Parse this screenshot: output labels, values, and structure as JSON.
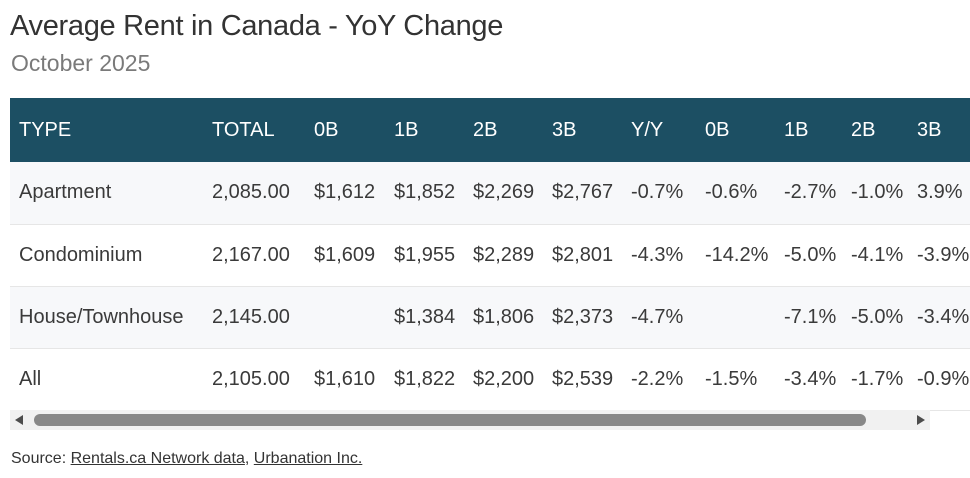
{
  "header": {
    "title": "Average Rent in Canada - YoY Change",
    "subtitle": "October 2025"
  },
  "table": {
    "columns": [
      "TYPE",
      "TOTAL",
      "0B",
      "1B",
      "2B",
      "3B",
      "Y/Y",
      "0B",
      "1B",
      "2B",
      "3B"
    ],
    "rows": [
      [
        "Apartment",
        "2,085.00",
        "$1,612",
        "$1,852",
        "$2,269",
        "$2,767",
        "-0.7%",
        "-0.6%",
        "-2.7%",
        "-1.0%",
        "3.9%"
      ],
      [
        "Condominium",
        "2,167.00",
        "$1,609",
        "$1,955",
        "$2,289",
        "$2,801",
        "-4.3%",
        "-14.2%",
        "-5.0%",
        "-4.1%",
        "-3.9%"
      ],
      [
        "House/Townhouse",
        "2,145.00",
        "",
        "$1,384",
        "$1,806",
        "$2,373",
        "-4.7%",
        "",
        "-7.1%",
        "-5.0%",
        "-3.4%"
      ],
      [
        "All",
        "2,105.00",
        "$1,610",
        "$1,822",
        "$2,200",
        "$2,539",
        "-2.2%",
        "-1.5%",
        "-3.4%",
        "-1.7%",
        "-0.9%"
      ]
    ]
  },
  "footer": {
    "source_prefix": "Source: ",
    "link1": "Rentals.ca Network data",
    "separator": ", ",
    "link2": "Urbanation Inc."
  },
  "colors": {
    "header_bg": "#1c4f63",
    "row_alt_bg": "#f7f8fa"
  }
}
